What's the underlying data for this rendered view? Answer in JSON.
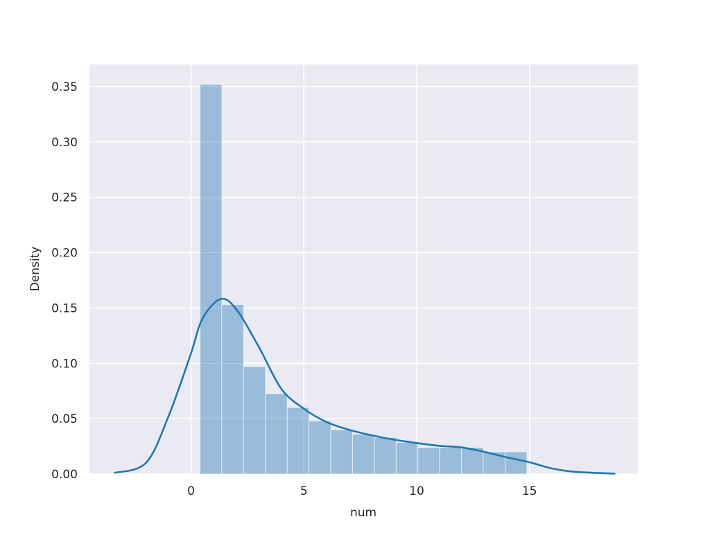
{
  "chart_data": {
    "type": "bar",
    "subtype": "histogram with kde line",
    "title": "",
    "xlabel": "num",
    "ylabel": "Density",
    "xlim": [
      -4.5,
      19.8
    ],
    "ylim": [
      0,
      0.37
    ],
    "xticks": [
      0,
      5,
      10,
      15
    ],
    "yticks": [
      0.0,
      0.05,
      0.1,
      0.15,
      0.2,
      0.25,
      0.3,
      0.35
    ],
    "ytick_labels": [
      "0.00",
      "0.05",
      "0.10",
      "0.15",
      "0.20",
      "0.25",
      "0.30",
      "0.35"
    ],
    "xtick_labels": [
      "0",
      "5",
      "10",
      "15"
    ],
    "grid": true,
    "background": "#eaeaf2",
    "bar_color": "#1f77b4",
    "bar_alpha": 0.4,
    "line_color": "#1f77b4",
    "histogram": {
      "bin_start": 0.4,
      "bin_end": 14.88,
      "densities": [
        0.352,
        0.153,
        0.097,
        0.0726,
        0.06,
        0.048,
        0.04,
        0.036,
        0.033,
        0.0285,
        0.024,
        0.024,
        0.024,
        0.02,
        0.02
      ]
    },
    "kde": {
      "x": [
        -3.4,
        -2,
        -1,
        0,
        0.5,
        1.3,
        2,
        3,
        4,
        5,
        6,
        7,
        8,
        9,
        10,
        11,
        12,
        13,
        14,
        15,
        16,
        17,
        18.8
      ],
      "y": [
        0.001,
        0.01,
        0.052,
        0.109,
        0.14,
        0.158,
        0.149,
        0.115,
        0.077,
        0.059,
        0.047,
        0.04,
        0.035,
        0.031,
        0.028,
        0.0255,
        0.024,
        0.02,
        0.015,
        0.0106,
        0.005,
        0.002,
        0.0003
      ]
    }
  }
}
